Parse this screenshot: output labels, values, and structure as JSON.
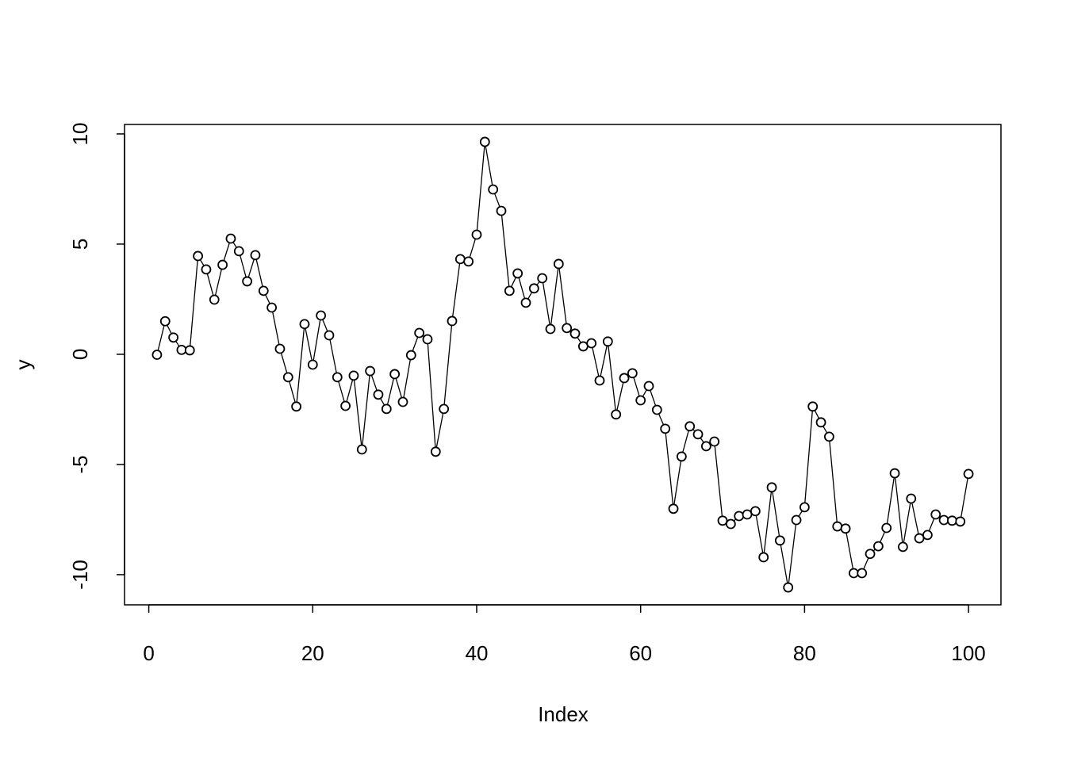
{
  "chart_data": {
    "type": "line",
    "marker": "circle",
    "color": "#000000",
    "xlabel": "Index",
    "ylabel": "y",
    "x": [
      1,
      2,
      3,
      4,
      5,
      6,
      7,
      8,
      9,
      10,
      11,
      12,
      13,
      14,
      15,
      16,
      17,
      18,
      19,
      20,
      21,
      22,
      23,
      24,
      25,
      26,
      27,
      28,
      29,
      30,
      31,
      32,
      33,
      34,
      35,
      36,
      37,
      38,
      39,
      40,
      41,
      42,
      43,
      44,
      45,
      46,
      47,
      48,
      49,
      50,
      51,
      52,
      53,
      54,
      55,
      56,
      57,
      58,
      59,
      60,
      61,
      62,
      63,
      64,
      65,
      66,
      67,
      68,
      69,
      70,
      71,
      72,
      73,
      74,
      75,
      76,
      77,
      78,
      79,
      80,
      81,
      82,
      83,
      84,
      85,
      86,
      87,
      88,
      89,
      90,
      91,
      92,
      93,
      94,
      95,
      96,
      97,
      98,
      99,
      100
    ],
    "values": [
      -0.02,
      1.5,
      0.76,
      0.2,
      0.18,
      4.46,
      3.85,
      2.48,
      4.06,
      5.25,
      4.68,
      3.31,
      4.5,
      2.88,
      2.12,
      0.25,
      -1.04,
      -2.37,
      1.37,
      -0.47,
      1.76,
      0.86,
      -1.04,
      -2.34,
      -0.97,
      -4.32,
      -0.76,
      -1.83,
      -2.48,
      -0.9,
      -2.16,
      -0.04,
      0.97,
      0.68,
      -4.42,
      -2.48,
      1.51,
      4.32,
      4.21,
      5.43,
      9.64,
      7.48,
      6.51,
      2.88,
      3.67,
      2.34,
      2.99,
      3.45,
      1.15,
      4.1,
      1.19,
      0.94,
      0.36,
      0.5,
      -1.19,
      0.58,
      -2.73,
      -1.08,
      -0.86,
      -2.09,
      -1.44,
      -2.52,
      -3.38,
      -7.01,
      -4.64,
      -3.27,
      -3.63,
      -4.17,
      -3.96,
      -7.55,
      -7.7,
      -7.34,
      -7.27,
      -7.12,
      -9.21,
      -6.04,
      -8.45,
      -10.58,
      -7.52,
      -6.94,
      -2.37,
      -3.09,
      -3.74,
      -7.81,
      -7.91,
      -9.93,
      -9.93,
      -9.06,
      -8.71,
      -7.88,
      -5.4,
      -8.74,
      -6.55,
      -8.35,
      -8.2,
      -7.27,
      -7.52,
      -7.55,
      -7.59,
      -5.43
    ],
    "xlim": [
      -2.96,
      103.96
    ],
    "ylim": [
      -11.37,
      10.43
    ],
    "xticks": [
      0,
      20,
      40,
      60,
      80,
      100
    ],
    "yticks": [
      -10,
      -5,
      0,
      5,
      10
    ]
  }
}
